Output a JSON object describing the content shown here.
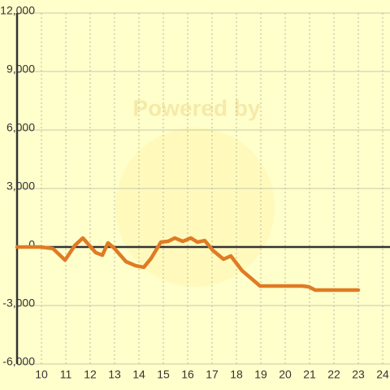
{
  "chart_data": {
    "type": "line",
    "watermark": "Powered by",
    "x": [
      9,
      9.97,
      10.47,
      10.97,
      11.37,
      11.7,
      12.23,
      12.5,
      12.73,
      12.97,
      13.47,
      13.87,
      14.2,
      14.5,
      14.9,
      15.2,
      15.47,
      15.8,
      16.13,
      16.4,
      16.7,
      17.03,
      17.47,
      17.77,
      18.23,
      18.97,
      20.7,
      20.97,
      21.23,
      23
    ],
    "series": [
      {
        "color": "#e07b24",
        "values": [
          0,
          0,
          -80,
          -670,
          80,
          460,
          -290,
          -420,
          210,
          -40,
          -750,
          -960,
          -1040,
          -580,
          250,
          290,
          460,
          290,
          460,
          250,
          330,
          -170,
          -625,
          -460,
          -1210,
          -2000,
          -2000,
          -2040,
          -2210,
          -2210
        ]
      }
    ],
    "xlim": [
      9,
      24.3
    ],
    "xticks": [
      10,
      11,
      12,
      13,
      14,
      15,
      16,
      17,
      18,
      19,
      20,
      21,
      22,
      23,
      24
    ],
    "ylim": [
      -6000,
      12000
    ],
    "yticks": [
      {
        "value": -6000,
        "label": "-6,000"
      },
      {
        "value": -3000,
        "label": "-3,000"
      },
      0,
      {
        "value": 3000,
        "label": "3,000"
      },
      {
        "value": 6000,
        "label": "6,000"
      },
      {
        "value": 9000,
        "label": "9,000"
      },
      {
        "value": 12000,
        "label": "12,000"
      }
    ],
    "grid": true
  }
}
